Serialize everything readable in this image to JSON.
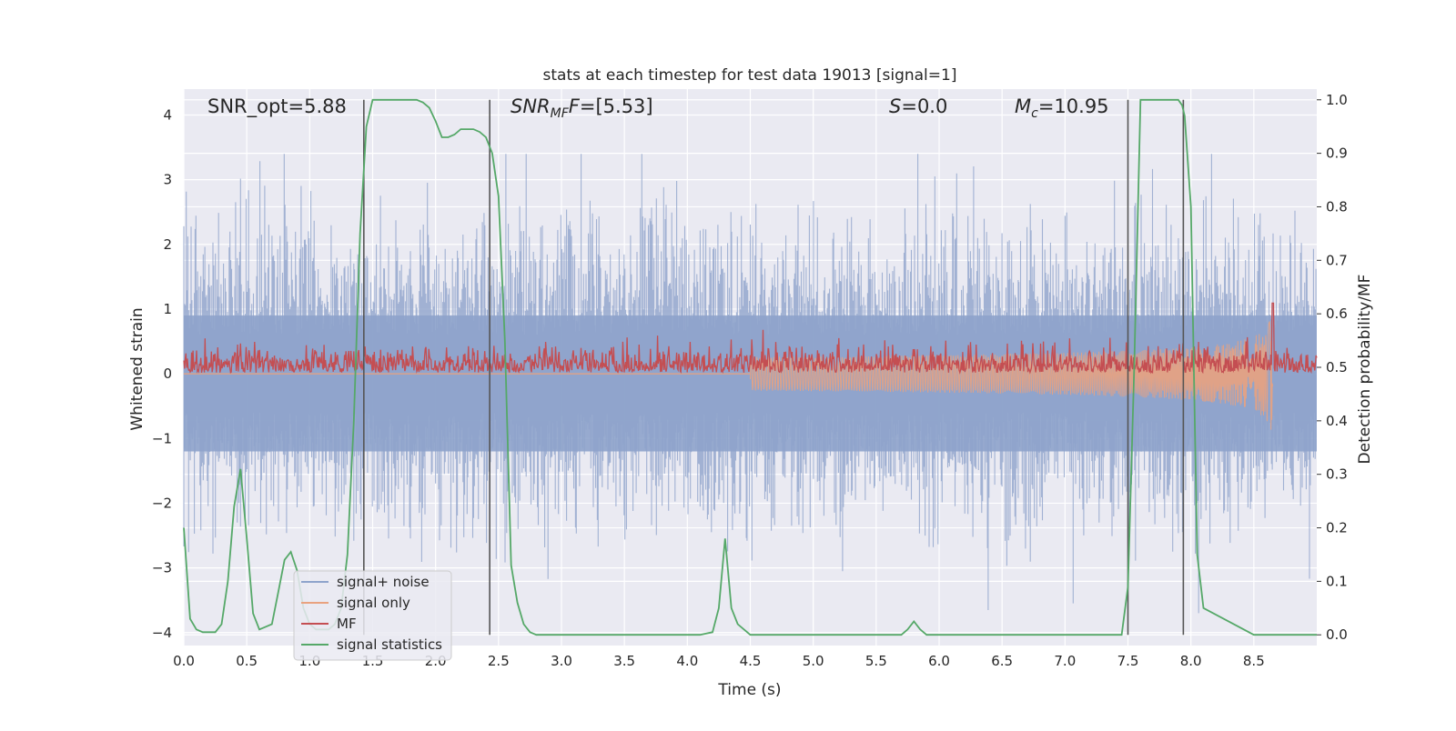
{
  "chart_data": {
    "type": "line",
    "title": "stats at each timestep for test data 19013 [signal=1]",
    "xlabel": "Time (s)",
    "ylabel_left": "Whitened strain",
    "ylabel_right": "Detection probability/MF",
    "xlim": [
      0,
      9
    ],
    "ylim_left": [
      -4.2,
      4.4
    ],
    "ylim_right": [
      -0.02,
      1.02
    ],
    "x_ticks": [
      "0.0",
      "0.5",
      "1.0",
      "1.5",
      "2.0",
      "2.5",
      "3.0",
      "3.5",
      "4.0",
      "4.5",
      "5.0",
      "5.5",
      "6.0",
      "6.5",
      "7.0",
      "7.5",
      "8.0",
      "8.5"
    ],
    "y_ticks_left": [
      "−4",
      "−3",
      "−2",
      "−1",
      "0",
      "1",
      "2",
      "3",
      "4"
    ],
    "y_ticks_right": [
      "0.0",
      "0.1",
      "0.2",
      "0.3",
      "0.4",
      "0.5",
      "0.6",
      "0.7",
      "0.8",
      "0.9",
      "1.0"
    ],
    "grid": true,
    "legend_position": "lower-left",
    "annotations": {
      "snr_opt": "SNR_opt=5.88",
      "snr_mf_base": "SNR",
      "snr_mf_sub": "MF",
      "snr_mf_value": "=[5.53]",
      "s_symbol": "S",
      "s_value": "=0.0",
      "mc_symbol": "M",
      "mc_sub": "c",
      "mc_value": "=10.95"
    },
    "vertical_lines_x": [
      1.43,
      2.43,
      7.5,
      7.94
    ],
    "colors": {
      "noise": "#8ea3cb",
      "signal": "#e9a27f",
      "mf": "#c44e52",
      "stats": "#55a868",
      "vline": "#555555",
      "panel": "#eaeaf2"
    },
    "series": [
      {
        "name": "signal+ noise",
        "axis": "left",
        "amplitude_envelope": {
          "t_start": 0,
          "t_end": 9,
          "typical_low": -2.2,
          "typical_high": 2.2,
          "peak_low": -3.7,
          "peak_high": 3.4
        }
      },
      {
        "name": "signal only",
        "axis": "left",
        "chirp": {
          "t_start": 4.5,
          "t_merger": 8.65,
          "peak_amplitude": 1.1
        }
      },
      {
        "name": "MF",
        "axis": "right",
        "baseline": 0.5,
        "band": [
          0.49,
          0.57
        ],
        "peak": {
          "x": 8.65,
          "y": 0.62
        }
      },
      {
        "name": "signal statistics",
        "axis": "right",
        "x": [
          0.0,
          0.05,
          0.1,
          0.15,
          0.2,
          0.25,
          0.3,
          0.35,
          0.4,
          0.45,
          0.5,
          0.55,
          0.6,
          0.65,
          0.7,
          0.75,
          0.8,
          0.85,
          0.9,
          0.95,
          1.0,
          1.05,
          1.1,
          1.15,
          1.2,
          1.25,
          1.3,
          1.35,
          1.4,
          1.45,
          1.5,
          1.55,
          1.6,
          1.65,
          1.7,
          1.75,
          1.8,
          1.85,
          1.9,
          1.95,
          2.0,
          2.05,
          2.1,
          2.15,
          2.2,
          2.25,
          2.3,
          2.35,
          2.4,
          2.45,
          2.5,
          2.55,
          2.6,
          2.65,
          2.7,
          2.75,
          2.8,
          2.9,
          3.0,
          3.5,
          4.0,
          4.1,
          4.2,
          4.25,
          4.3,
          4.35,
          4.4,
          4.5,
          5.0,
          5.5,
          5.6,
          5.7,
          5.75,
          5.8,
          5.85,
          5.9,
          6.0,
          6.5,
          7.0,
          7.4,
          7.45,
          7.5,
          7.55,
          7.6,
          7.65,
          7.7,
          7.75,
          7.8,
          7.85,
          7.9,
          7.93,
          7.95,
          8.0,
          8.05,
          8.1,
          8.5,
          9.0
        ],
        "y": [
          0.2,
          0.03,
          0.01,
          0.005,
          0.005,
          0.005,
          0.02,
          0.1,
          0.24,
          0.31,
          0.18,
          0.04,
          0.01,
          0.015,
          0.02,
          0.08,
          0.14,
          0.155,
          0.12,
          0.05,
          0.02,
          0.01,
          0.01,
          0.01,
          0.02,
          0.05,
          0.15,
          0.4,
          0.75,
          0.95,
          1.0,
          1.0,
          1.0,
          1.0,
          1.0,
          1.0,
          1.0,
          1.0,
          0.995,
          0.985,
          0.96,
          0.93,
          0.93,
          0.935,
          0.945,
          0.945,
          0.945,
          0.94,
          0.93,
          0.9,
          0.82,
          0.55,
          0.13,
          0.06,
          0.02,
          0.005,
          0.0,
          0.0,
          0.0,
          0.0,
          0.0,
          0.0,
          0.005,
          0.05,
          0.18,
          0.05,
          0.02,
          0.0,
          0.0,
          0.0,
          0.0,
          0.0,
          0.01,
          0.025,
          0.01,
          0.0,
          0.0,
          0.0,
          0.0,
          0.0,
          0.0,
          0.09,
          0.5,
          1.0,
          1.0,
          1.0,
          1.0,
          1.0,
          1.0,
          1.0,
          0.99,
          0.97,
          0.8,
          0.15,
          0.05,
          0.0,
          0.0
        ]
      }
    ]
  },
  "legend": {
    "items": [
      {
        "label": "signal+ noise",
        "color": "#8ea3cb"
      },
      {
        "label": "signal only",
        "color": "#e9a27f"
      },
      {
        "label": "MF",
        "color": "#c44e52"
      },
      {
        "label": "signal statistics",
        "color": "#55a868"
      }
    ]
  }
}
